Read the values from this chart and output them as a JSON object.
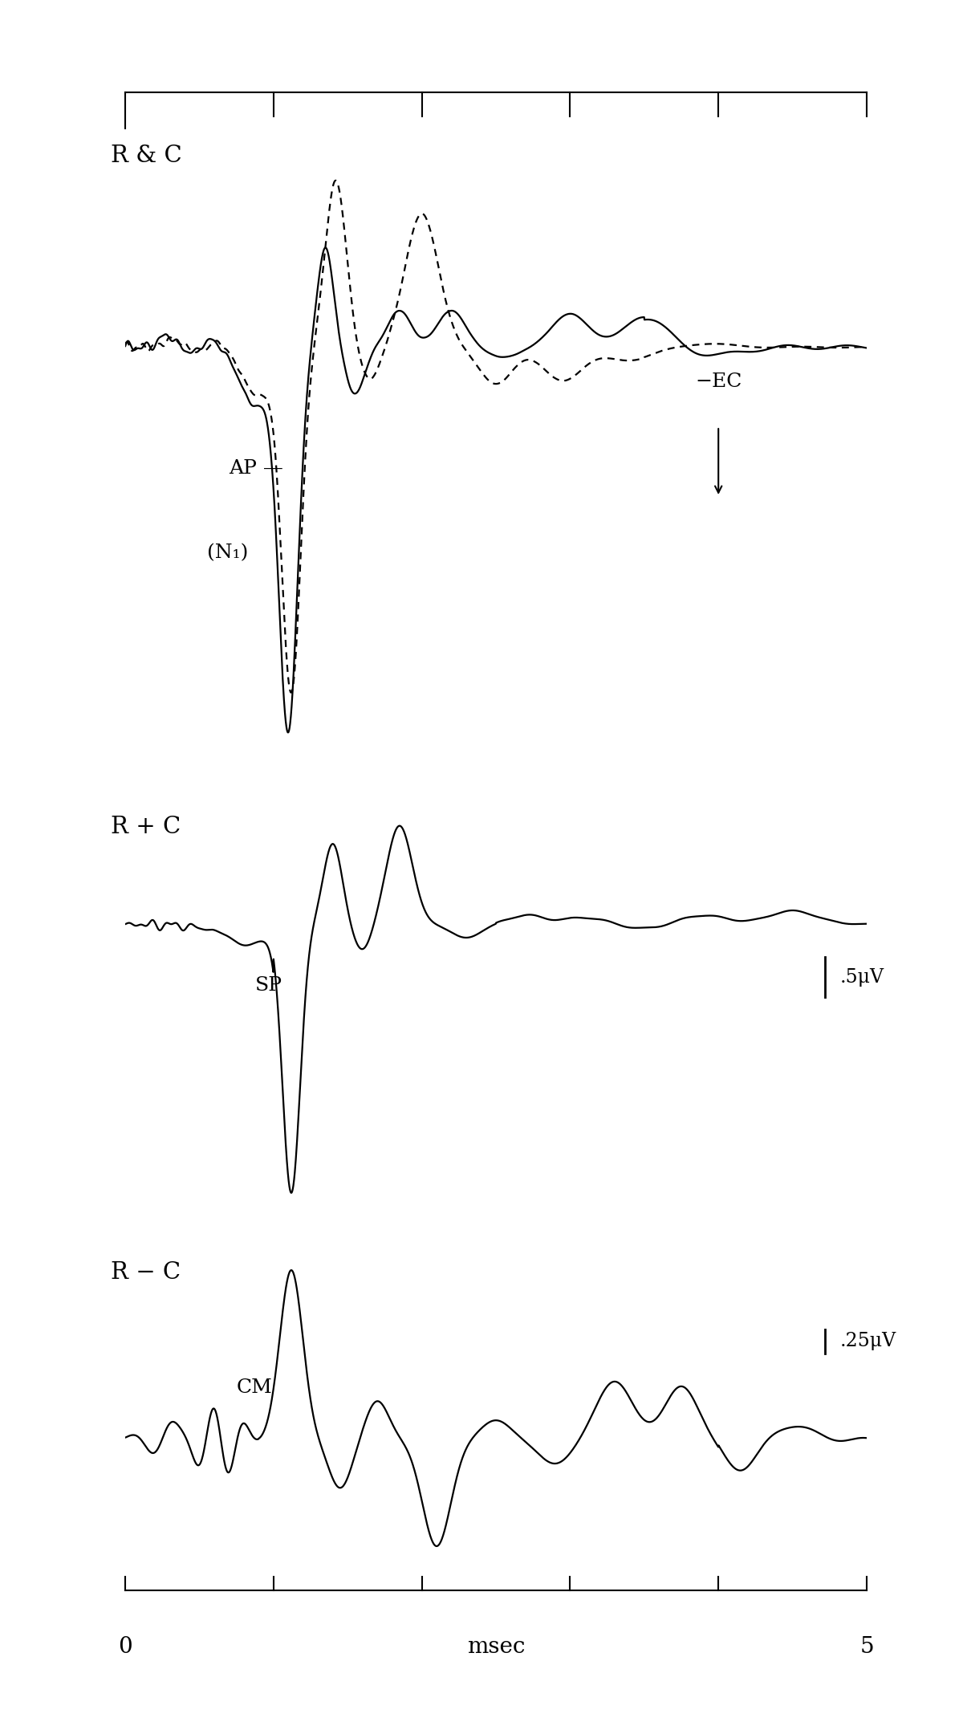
{
  "background_color": "#ffffff",
  "panel1_label": "R & C",
  "panel2_label": "R + C",
  "panel3_label": "R − C",
  "panel1_sublabel1": "AP —",
  "panel1_sublabel2": "(N₁)",
  "panel2_sublabel": "SP",
  "panel3_sublabel": "CM",
  "ec_label": "−EC",
  "scale1_label": ".5μV",
  "scale2_label": ".25μV",
  "xlabel": "msec",
  "linewidth": 1.6
}
